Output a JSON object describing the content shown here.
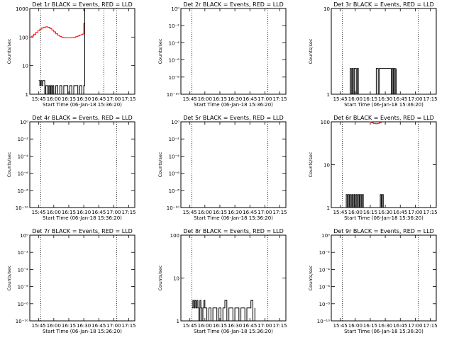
{
  "chart_data": [
    {
      "type": "line",
      "title": "Det 1r BLACK = Events, RED = LLD",
      "xlabel": "Start Time (06-Jan-18 15:36:20)",
      "ylabel": "Counts/sec",
      "yscale": "log",
      "yticks": [
        "1",
        "10",
        "100",
        "1000"
      ],
      "ylim": [
        1,
        1000
      ],
      "xticks": [
        "15:45",
        "16:00",
        "16:15",
        "16:30",
        "16:45",
        "17:00",
        "17:15"
      ],
      "xlim": [
        "15:36",
        "17:21"
      ],
      "vlines": [
        "15:47",
        "16:50",
        "17:03"
      ],
      "series": [
        {
          "color": "#ff0000",
          "x": [
            "15:36",
            "15:38",
            "15:40",
            "15:42",
            "15:44",
            "15:46",
            "15:48",
            "15:50",
            "15:52",
            "15:54",
            "15:56",
            "15:58",
            "16:00",
            "16:02",
            "16:04",
            "16:06",
            "16:08",
            "16:10",
            "16:12",
            "16:14",
            "16:16",
            "16:18",
            "16:20",
            "16:22",
            "16:24",
            "16:26",
            "16:28",
            "16:29",
            "16:30",
            "16:31"
          ],
          "y": [
            100,
            108,
            125,
            145,
            168,
            190,
            210,
            222,
            228,
            220,
            200,
            176,
            152,
            130,
            114,
            104,
            98,
            95,
            94,
            94,
            95,
            96,
            98,
            103,
            110,
            118,
            124,
            128,
            300,
            1000
          ]
        },
        {
          "color": "#000000",
          "x": [
            "15:45",
            "15:46",
            "15:47",
            "15:48",
            "15:49",
            "15:50",
            "15:51",
            "15:52",
            "15:53",
            "15:54",
            "15:55",
            "15:56",
            "15:57",
            "15:58",
            "15:59",
            "16:00",
            "16:02",
            "16:04",
            "16:06",
            "16:08",
            "16:10",
            "16:12",
            "16:14",
            "16:16",
            "16:18",
            "16:20",
            "16:22",
            "16:24",
            "16:26",
            "16:28",
            "16:30",
            "16:31"
          ],
          "y": [
            3,
            2,
            3,
            2,
            3,
            3,
            1,
            2,
            2,
            1,
            2,
            1,
            2,
            1,
            2,
            1,
            2,
            1,
            2,
            1,
            2,
            2,
            1,
            2,
            1,
            2,
            2,
            1,
            2,
            1,
            2,
            1000
          ]
        }
      ]
    },
    {
      "type": "line",
      "title": "Det 2r BLACK = Events, RED = LLD",
      "xlabel": "Start Time (06-Jan-18 15:36:20)",
      "ylabel": "Counts/sec",
      "yscale": "log",
      "yticks": [
        "10⁻¹⁰",
        "10⁻⁸",
        "10⁻⁶",
        "10⁻⁴",
        "10⁻²",
        "10⁰"
      ],
      "ylim": [
        1e-10,
        1
      ],
      "xticks": [
        "15:45",
        "16:00",
        "16:15",
        "16:30",
        "16:45",
        "17:00",
        "17:15"
      ],
      "xlim": [
        "15:36",
        "17:21"
      ],
      "vlines": [
        "15:47",
        "17:03"
      ],
      "series": []
    },
    {
      "type": "line",
      "title": "Det 3r BLACK = Events, RED = LLD",
      "xlabel": "Start Time (06-Jan-18 15:36:20)",
      "ylabel": "Counts/sec",
      "yscale": "log",
      "yticks": [
        "1",
        "10"
      ],
      "ylim": [
        1,
        10
      ],
      "xticks": [
        "15:45",
        "16:00",
        "16:15",
        "16:30",
        "16:45",
        "17:00",
        "17:15"
      ],
      "xlim": [
        "15:36",
        "17:21"
      ],
      "vlines": [
        "15:47",
        "17:03"
      ],
      "series": [
        {
          "color": "#000000",
          "x": [
            "15:54",
            "15:55",
            "15:56",
            "15:57",
            "15:58",
            "15:59",
            "16:00",
            "16:01",
            "16:02",
            "16:03",
            "16:20",
            "16:21",
            "16:22",
            "16:23",
            "16:24",
            "16:36",
            "16:37",
            "16:38",
            "16:39",
            "16:40",
            "16:41"
          ],
          "y": [
            1,
            2,
            1,
            2,
            1,
            2,
            2,
            1,
            2,
            1,
            1,
            2,
            2,
            1,
            2,
            1,
            2,
            1,
            2,
            1,
            2
          ]
        }
      ]
    },
    {
      "type": "line",
      "title": "Det 4r BLACK = Events, RED = LLD",
      "xlabel": "Start Time (06-Jan-18 15:36:20)",
      "ylabel": "Counts/sec",
      "yscale": "log",
      "yticks": [
        "10⁻¹⁰",
        "10⁻⁸",
        "10⁻⁶",
        "10⁻⁴",
        "10⁻²",
        "10⁰"
      ],
      "ylim": [
        1e-10,
        1
      ],
      "xticks": [
        "15:45",
        "16:00",
        "16:15",
        "16:30",
        "16:45",
        "17:00",
        "17:15"
      ],
      "xlim": [
        "15:36",
        "17:21"
      ],
      "vlines": [
        "15:47",
        "17:03"
      ],
      "series": []
    },
    {
      "type": "line",
      "title": "Det 5r BLACK = Events, RED = LLD",
      "xlabel": "Start Time (06-Jan-18 15:36:20)",
      "ylabel": "Counts/sec",
      "yscale": "log",
      "yticks": [
        "10⁻¹⁰",
        "10⁻⁸",
        "10⁻⁶",
        "10⁻⁴",
        "10⁻²",
        "10⁰"
      ],
      "ylim": [
        1e-10,
        1
      ],
      "xticks": [
        "15:45",
        "16:00",
        "16:15",
        "16:30",
        "16:45",
        "17:00",
        "17:15"
      ],
      "xlim": [
        "15:36",
        "17:21"
      ],
      "vlines": [
        "15:47",
        "17:03"
      ],
      "series": []
    },
    {
      "type": "line",
      "title": "Det 6r BLACK = Events, RED = LLD",
      "xlabel": "Start Time (06-Jan-18 15:36:20)",
      "ylabel": "Counts/sec",
      "yscale": "log",
      "yticks": [
        "1",
        "10",
        "100"
      ],
      "ylim": [
        1,
        100
      ],
      "xticks": [
        "15:45",
        "16:00",
        "16:15",
        "16:30",
        "16:45",
        "17:00",
        "17:15"
      ],
      "xlim": [
        "15:36",
        "17:21"
      ],
      "vlines": [
        "15:47",
        "17:03"
      ],
      "series": [
        {
          "color": "#ff0000",
          "x": [
            "16:14",
            "16:16",
            "16:18",
            "16:20",
            "16:22",
            "16:24",
            "16:26"
          ],
          "y": [
            100,
            96,
            92,
            90,
            92,
            96,
            100
          ]
        },
        {
          "color": "#000000",
          "x": [
            "15:50",
            "15:51",
            "15:52",
            "15:53",
            "15:54",
            "15:55",
            "15:56",
            "15:57",
            "15:58",
            "15:59",
            "16:00",
            "16:01",
            "16:02",
            "16:03",
            "16:04",
            "16:05",
            "16:06",
            "16:07",
            "16:08",
            "16:24",
            "16:25",
            "16:26",
            "16:27",
            "16:28"
          ],
          "y": [
            1,
            2,
            1,
            2,
            1,
            2,
            1,
            2,
            1,
            2,
            1,
            2,
            1,
            2,
            1,
            2,
            1,
            2,
            1,
            1,
            2,
            1,
            2,
            1
          ]
        }
      ]
    },
    {
      "type": "line",
      "title": "Det 7r BLACK = Events, RED = LLD",
      "xlabel": "Start Time (06-Jan-18 15:36:20)",
      "ylabel": "Counts/sec",
      "yscale": "log",
      "yticks": [
        "10⁻¹⁰",
        "10⁻⁸",
        "10⁻⁶",
        "10⁻⁴",
        "10⁻²",
        "10⁰"
      ],
      "ylim": [
        1e-10,
        1
      ],
      "xticks": [
        "15:45",
        "16:00",
        "16:15",
        "16:30",
        "16:45",
        "17:00",
        "17:15"
      ],
      "xlim": [
        "15:36",
        "17:21"
      ],
      "vlines": [
        "15:47",
        "17:03"
      ],
      "series": []
    },
    {
      "type": "line",
      "title": "Det 8r BLACK = Events, RED = LLD",
      "xlabel": "Start Time (06-Jan-18 15:36:20)",
      "ylabel": "Counts/sec",
      "yscale": "log",
      "yticks": [
        "1",
        "10",
        "100"
      ],
      "ylim": [
        1,
        100
      ],
      "xticks": [
        "15:45",
        "16:00",
        "16:15",
        "16:30",
        "16:45",
        "17:00",
        "17:15"
      ],
      "xlim": [
        "15:36",
        "17:21"
      ],
      "vlines": [
        "15:47",
        "17:03"
      ],
      "series": [
        {
          "color": "#000000",
          "x": [
            "15:47",
            "15:48",
            "15:49",
            "15:50",
            "15:51",
            "15:52",
            "15:53",
            "15:54",
            "15:55",
            "15:56",
            "15:57",
            "15:58",
            "15:59",
            "16:00",
            "16:02",
            "16:04",
            "16:06",
            "16:08",
            "16:10",
            "16:12",
            "16:14",
            "16:16",
            "16:18",
            "16:20",
            "16:22",
            "16:24",
            "16:26",
            "16:28",
            "16:30",
            "16:32",
            "16:34",
            "16:36",
            "16:38",
            "16:40",
            "16:42",
            "16:44",
            "16:46",
            "16:48",
            "16:50"
          ],
          "y": [
            2,
            3,
            2,
            3,
            2,
            3,
            2,
            1,
            3,
            2,
            1,
            2,
            3,
            2,
            1,
            2,
            1,
            2,
            2,
            1,
            2,
            1,
            2,
            3,
            1,
            2,
            2,
            1,
            2,
            2,
            1,
            2,
            2,
            1,
            2,
            2,
            3,
            1,
            2
          ]
        }
      ]
    },
    {
      "type": "line",
      "title": "Det 9r BLACK = Events, RED = LLD",
      "xlabel": "Start Time (06-Jan-18 15:36:20)",
      "ylabel": "Counts/sec",
      "yscale": "log",
      "yticks": [
        "10⁻¹⁰",
        "10⁻⁸",
        "10⁻⁶",
        "10⁻⁴",
        "10⁻²",
        "10⁰"
      ],
      "ylim": [
        1e-10,
        1
      ],
      "xticks": [
        "15:45",
        "16:00",
        "16:15",
        "16:30",
        "16:45",
        "17:00",
        "17:15"
      ],
      "xlim": [
        "15:36",
        "17:21"
      ],
      "vlines": [
        "15:47",
        "17:03"
      ],
      "series": []
    }
  ]
}
